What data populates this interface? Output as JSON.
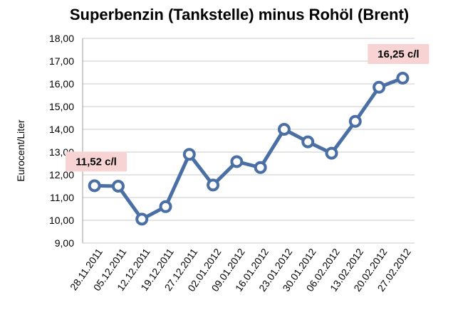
{
  "chart_data": {
    "type": "line",
    "title": "Superbenzin (Tankstelle) minus Rohöl (Brent)",
    "xlabel": "",
    "ylabel": "Eurocent/Liter",
    "ylim": [
      9,
      18
    ],
    "yticks": [
      "9,00",
      "10,00",
      "11,00",
      "12,00",
      "13,00",
      "14,00",
      "15,00",
      "16,00",
      "17,00",
      "18,00"
    ],
    "grid": true,
    "categories": [
      "28.11.2011",
      "05.12.2011",
      "12.12.2011",
      "19.12.2011",
      "27.12.2011",
      "02.01.2012",
      "09.01.2012",
      "16.01.2012",
      "23.01.2012",
      "30.01.2012",
      "06.02.2012",
      "13.02.2012",
      "20.02.2012",
      "27.02.2012"
    ],
    "series": [
      {
        "values": [
          11.52,
          11.5,
          10.05,
          10.6,
          12.9,
          11.55,
          12.58,
          12.32,
          14.0,
          13.45,
          12.95,
          14.35,
          15.85,
          16.25
        ]
      }
    ],
    "annotations": [
      {
        "text": "11,52 c/l",
        "point_index": 0
      },
      {
        "text": "16,25 c/l",
        "point_index": 13
      }
    ],
    "colors": {
      "line": "#4a6fa5",
      "marker_fill": "#ffffff",
      "annotation_bg": "#f8d3d3",
      "grid": "#c8c8c8"
    }
  }
}
